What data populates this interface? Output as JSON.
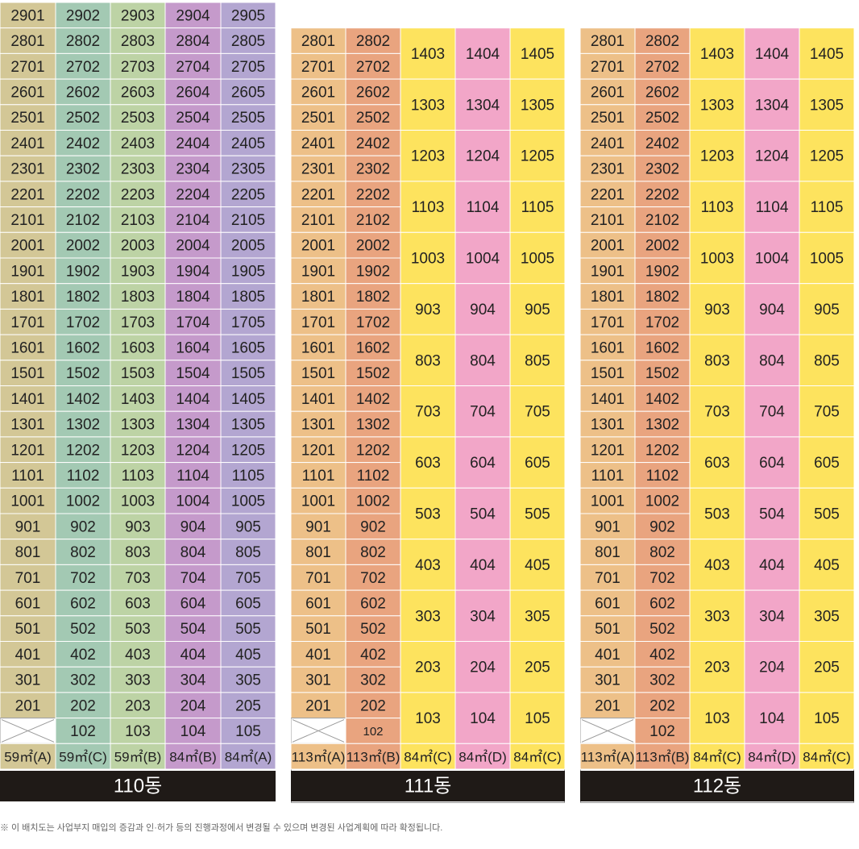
{
  "colors": {
    "c59A": "#d3c796",
    "c59C": "#a3c9b3",
    "c59B": "#bdd3a5",
    "c84B": "#c59acb",
    "c84A": "#b3a6d1",
    "c113A": "#edc088",
    "c113B": "#e9a47f",
    "c84C": "#fde35e",
    "c84D": "#f2a6c8",
    "grid": "#ffffff",
    "frame": "#999999",
    "footer": "#1f1a17"
  },
  "buildings": [
    {
      "name": "110동",
      "layout": "tall",
      "top_floor": 29,
      "columns": [
        {
          "type": "59㎡(A)",
          "unit": "01",
          "color": "c59A"
        },
        {
          "type": "59㎡(C)",
          "unit": "02",
          "color": "c59C"
        },
        {
          "type": "59㎡(B)",
          "unit": "03",
          "color": "c59B"
        },
        {
          "type": "84㎡(B)",
          "unit": "04",
          "color": "c84B"
        },
        {
          "type": "84㎡(A)",
          "unit": "05",
          "color": "c84A"
        }
      ]
    },
    {
      "name": "111동",
      "layout": "mixed",
      "top_floor": 28,
      "columns": [
        {
          "type": "113㎡(A)",
          "unit": "01",
          "color": "c113A"
        },
        {
          "type": "113㎡(B)",
          "unit": "02",
          "color": "c113B"
        },
        {
          "type": "84㎡(C)",
          "unit": "03",
          "color": "c84C"
        },
        {
          "type": "84㎡(D)",
          "unit": "04",
          "color": "c84D"
        },
        {
          "type": "84㎡(C)",
          "unit": "05",
          "color": "c84C"
        }
      ]
    },
    {
      "name": "112동",
      "layout": "mixed",
      "top_floor": 28,
      "columns": [
        {
          "type": "113㎡(A)",
          "unit": "01",
          "color": "c113A"
        },
        {
          "type": "113㎡(B)",
          "unit": "02",
          "color": "c113B"
        },
        {
          "type": "84㎡(C)",
          "unit": "03",
          "color": "c84C"
        },
        {
          "type": "84㎡(D)",
          "unit": "04",
          "color": "c84D"
        },
        {
          "type": "84㎡(C)",
          "unit": "05",
          "color": "c84C"
        }
      ]
    }
  ],
  "note": "※ 이 배치도는 사업부지 매입의 증감과 인·허가 등의 진행과정에서 변경될 수 있으며 변경된 사업계획에 따라 확정됩니다."
}
